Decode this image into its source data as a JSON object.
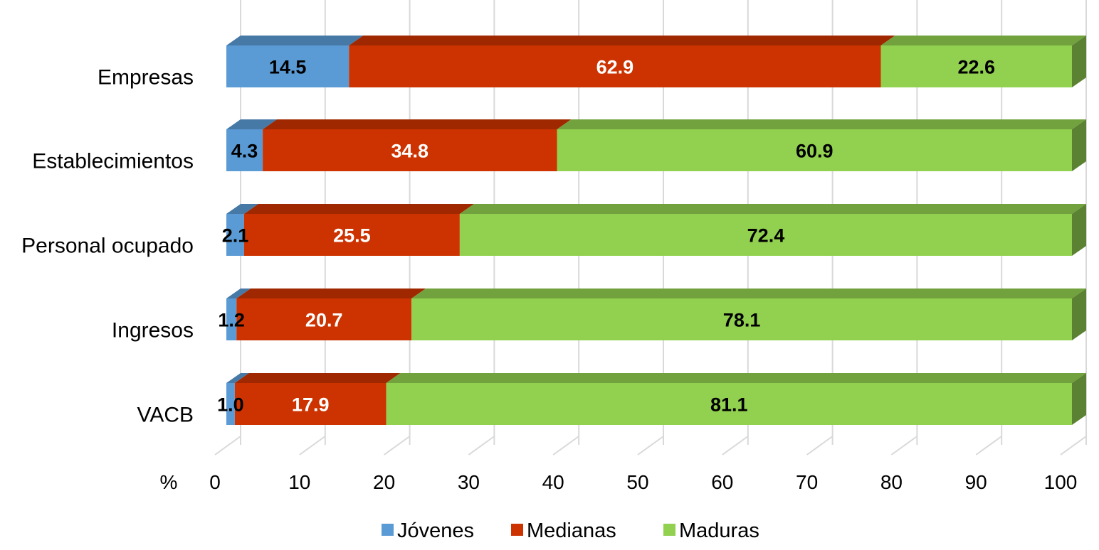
{
  "chart_data": {
    "type": "bar",
    "orientation": "horizontal",
    "stacked": true,
    "three_d": true,
    "x_unit_label": "%",
    "xlim": [
      0,
      100
    ],
    "x_ticks": [
      "0",
      "10",
      "20",
      "30",
      "40",
      "50",
      "60",
      "70",
      "80",
      "90",
      "100"
    ],
    "categories": [
      "Empresas",
      "Establecimientos",
      "Personal ocupado",
      "Ingresos",
      "VACB"
    ],
    "series": [
      {
        "name": "Jóvenes",
        "color": "#5b9bd5",
        "values": [
          14.5,
          4.3,
          2.1,
          1.2,
          1.0
        ],
        "labels": [
          "14.5",
          "4.3",
          "2.1",
          "1.2",
          "1.0"
        ],
        "label_color": "#000000"
      },
      {
        "name": "Medianas",
        "color": "#cc3300",
        "values": [
          62.9,
          34.8,
          25.5,
          20.7,
          17.9
        ],
        "labels": [
          "62.9",
          "34.8",
          "25.5",
          "20.7",
          "17.9"
        ],
        "label_color": "#ffffff"
      },
      {
        "name": "Maduras",
        "color": "#92d050",
        "values": [
          22.6,
          60.9,
          72.4,
          78.1,
          81.1
        ],
        "labels": [
          "22.6",
          "60.9",
          "72.4",
          "78.1",
          "81.1"
        ],
        "label_color": "#000000"
      }
    ],
    "grid": true,
    "legend_position": "bottom"
  }
}
